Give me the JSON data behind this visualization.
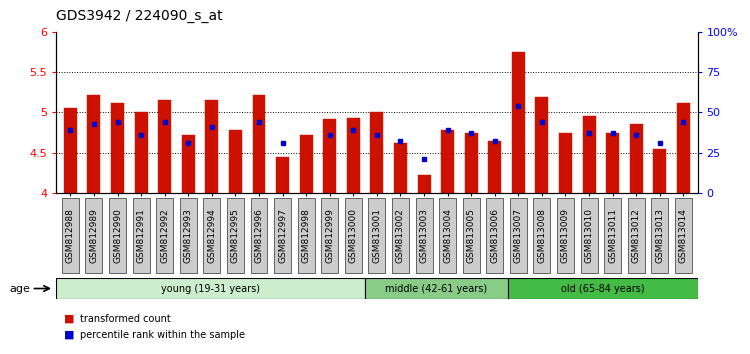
{
  "title": "GDS3942 / 224090_s_at",
  "samples": [
    "GSM812988",
    "GSM812989",
    "GSM812990",
    "GSM812991",
    "GSM812992",
    "GSM812993",
    "GSM812994",
    "GSM812995",
    "GSM812996",
    "GSM812997",
    "GSM812998",
    "GSM812999",
    "GSM813000",
    "GSM813001",
    "GSM813002",
    "GSM813003",
    "GSM813004",
    "GSM813005",
    "GSM813006",
    "GSM813007",
    "GSM813008",
    "GSM813009",
    "GSM813010",
    "GSM813011",
    "GSM813012",
    "GSM813013",
    "GSM813014"
  ],
  "bar_heights": [
    5.06,
    5.22,
    5.12,
    5.0,
    5.15,
    4.72,
    5.15,
    4.78,
    5.22,
    4.45,
    4.72,
    4.92,
    4.93,
    5.0,
    4.62,
    4.22,
    4.78,
    4.75,
    4.65,
    5.75,
    5.19,
    4.75,
    4.95,
    4.75,
    4.85,
    4.55,
    5.12
  ],
  "blue_dots": [
    4.78,
    4.85,
    4.88,
    4.72,
    4.88,
    4.62,
    4.82,
    null,
    4.88,
    4.62,
    null,
    4.72,
    4.78,
    4.72,
    4.65,
    4.42,
    4.78,
    4.75,
    4.65,
    5.08,
    4.88,
    null,
    4.75,
    4.75,
    4.72,
    4.62,
    4.88
  ],
  "ylim": [
    4.0,
    6.0
  ],
  "y2lim": [
    0,
    100
  ],
  "yticks_left": [
    4.0,
    4.5,
    5.0,
    5.5,
    6.0
  ],
  "ytick_labels_left": [
    "4",
    "4.5",
    "5",
    "5.5",
    "6"
  ],
  "yticks_right": [
    0,
    25,
    50,
    75,
    100
  ],
  "ytick_labels_right": [
    "0",
    "25",
    "50",
    "75",
    "100%"
  ],
  "bar_color": "#cc1100",
  "dot_color": "#0000cc",
  "bar_bottom": 4.0,
  "groups": [
    {
      "label": "young (19-31 years)",
      "start": 0,
      "end": 13,
      "color": "#cceecc"
    },
    {
      "label": "middle (42-61 years)",
      "start": 13,
      "end": 19,
      "color": "#88cc88"
    },
    {
      "label": "old (65-84 years)",
      "start": 19,
      "end": 27,
      "color": "#44bb44"
    }
  ],
  "age_label": "age",
  "legend_items": [
    {
      "color": "#cc1100",
      "label": "transformed count"
    },
    {
      "color": "#0000cc",
      "label": "percentile rank within the sample"
    }
  ],
  "bar_width": 0.55,
  "tick_label_fontsize": 6.5,
  "title_fontsize": 10,
  "grid_yticks": [
    4.5,
    5.0,
    5.5
  ],
  "tick_bg_color": "#cccccc"
}
